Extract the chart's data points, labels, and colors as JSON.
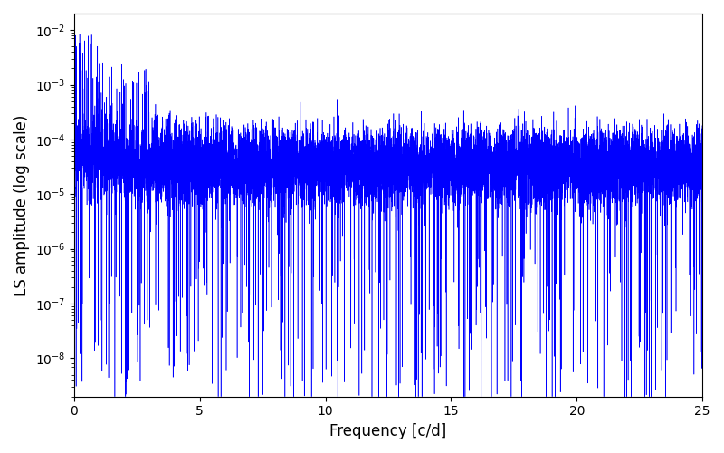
{
  "title": "",
  "xlabel": "Frequency [c/d]",
  "ylabel": "LS amplitude (log scale)",
  "line_color": "#0000ff",
  "xlim": [
    0,
    25
  ],
  "ylim_log": [
    -8.7,
    -1.7
  ],
  "xmin": 0.0,
  "xmax": 25.0,
  "n_points": 10000,
  "seed": 12345,
  "background_color": "#ffffff",
  "figsize": [
    8.0,
    5.0
  ],
  "dpi": 100
}
